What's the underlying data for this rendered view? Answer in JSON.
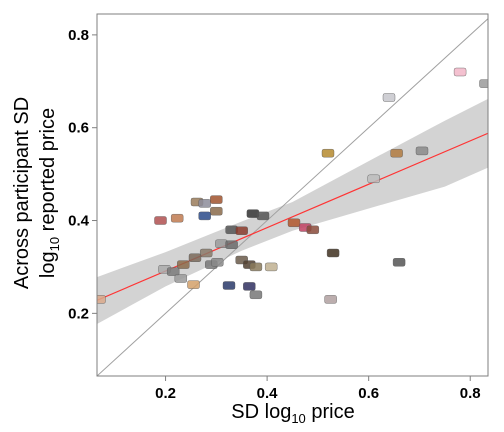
{
  "chart_data": {
    "type": "scatter",
    "xlabel": "SD log",
    "xlabel_sub": "10",
    "xlabel_tail": " price",
    "ylabel_line1": "Across participant SD",
    "ylabel_line2_pre": "log",
    "ylabel_line2_sub": "10",
    "ylabel_line2_post": " reported price",
    "xlim": [
      0.065,
      0.835
    ],
    "ylim": [
      0.065,
      0.845
    ],
    "x_ticks": [
      {
        "value": 0.2,
        "label": "0.2"
      },
      {
        "value": 0.4,
        "label": "0.4"
      },
      {
        "value": 0.6,
        "label": "0.6"
      },
      {
        "value": 0.8,
        "label": "0.8"
      }
    ],
    "y_ticks": [
      {
        "value": 0.2,
        "label": "0.2"
      },
      {
        "value": 0.4,
        "label": "0.4"
      },
      {
        "value": 0.6,
        "label": "0.6"
      },
      {
        "value": 0.8,
        "label": "0.8"
      }
    ],
    "grid": false,
    "identity_line": true,
    "fit_line": {
      "x": [
        0.065,
        0.835
      ],
      "y": [
        0.228,
        0.588
      ],
      "color": "#ff3333"
    },
    "confidence_band": {
      "x": [
        0.065,
        0.2,
        0.35,
        0.45,
        0.6,
        0.75,
        0.835
      ],
      "upper": [
        0.278,
        0.332,
        0.398,
        0.44,
        0.528,
        0.615,
        0.662
      ],
      "lower": [
        0.177,
        0.258,
        0.335,
        0.378,
        0.426,
        0.473,
        0.514
      ],
      "color": "#d3d3d3"
    },
    "points": [
      {
        "x": 0.07,
        "y": 0.23,
        "color": "#d9a88a"
      },
      {
        "x": 0.78,
        "y": 0.72,
        "color": "#f2b6c8"
      },
      {
        "x": 0.64,
        "y": 0.665,
        "color": "#c7c7cc"
      },
      {
        "x": 0.83,
        "y": 0.695,
        "color": "#9a9a9a"
      },
      {
        "x": 0.52,
        "y": 0.545,
        "color": "#b58a2e"
      },
      {
        "x": 0.655,
        "y": 0.545,
        "color": "#b07a40"
      },
      {
        "x": 0.705,
        "y": 0.55,
        "color": "#8a8a8a"
      },
      {
        "x": 0.61,
        "y": 0.49,
        "color": "#bcbcbc"
      },
      {
        "x": 0.262,
        "y": 0.44,
        "color": "#9a7b5b"
      },
      {
        "x": 0.277,
        "y": 0.437,
        "color": "#8c8c9a"
      },
      {
        "x": 0.3,
        "y": 0.445,
        "color": "#a0522d"
      },
      {
        "x": 0.19,
        "y": 0.4,
        "color": "#b05050"
      },
      {
        "x": 0.223,
        "y": 0.405,
        "color": "#c07a50"
      },
      {
        "x": 0.3,
        "y": 0.42,
        "color": "#8a6a4a"
      },
      {
        "x": 0.277,
        "y": 0.41,
        "color": "#2a4a8a"
      },
      {
        "x": 0.372,
        "y": 0.415,
        "color": "#303030"
      },
      {
        "x": 0.392,
        "y": 0.41,
        "color": "#555555"
      },
      {
        "x": 0.33,
        "y": 0.38,
        "color": "#555555"
      },
      {
        "x": 0.35,
        "y": 0.378,
        "color": "#8a3a2a"
      },
      {
        "x": 0.453,
        "y": 0.395,
        "color": "#b0552a"
      },
      {
        "x": 0.475,
        "y": 0.385,
        "color": "#c04060"
      },
      {
        "x": 0.49,
        "y": 0.38,
        "color": "#8a4a3a"
      },
      {
        "x": 0.31,
        "y": 0.35,
        "color": "#9a9a9a"
      },
      {
        "x": 0.33,
        "y": 0.348,
        "color": "#6a6a6a"
      },
      {
        "x": 0.28,
        "y": 0.33,
        "color": "#8a7a6a"
      },
      {
        "x": 0.258,
        "y": 0.32,
        "color": "#7a6a5a"
      },
      {
        "x": 0.235,
        "y": 0.305,
        "color": "#8a6a4a"
      },
      {
        "x": 0.198,
        "y": 0.295,
        "color": "#aaaaaa"
      },
      {
        "x": 0.215,
        "y": 0.29,
        "color": "#7a7a7a"
      },
      {
        "x": 0.23,
        "y": 0.275,
        "color": "#9a9a9a"
      },
      {
        "x": 0.255,
        "y": 0.262,
        "color": "#d2a06a"
      },
      {
        "x": 0.29,
        "y": 0.305,
        "color": "#777777"
      },
      {
        "x": 0.302,
        "y": 0.31,
        "color": "#888888"
      },
      {
        "x": 0.35,
        "y": 0.315,
        "color": "#6a5a4a"
      },
      {
        "x": 0.365,
        "y": 0.305,
        "color": "#504030"
      },
      {
        "x": 0.378,
        "y": 0.3,
        "color": "#8a7a5a"
      },
      {
        "x": 0.408,
        "y": 0.3,
        "color": "#c0b090"
      },
      {
        "x": 0.325,
        "y": 0.26,
        "color": "#2a3a6a"
      },
      {
        "x": 0.365,
        "y": 0.258,
        "color": "#303060"
      },
      {
        "x": 0.378,
        "y": 0.24,
        "color": "#777777"
      },
      {
        "x": 0.53,
        "y": 0.33,
        "color": "#403020"
      },
      {
        "x": 0.525,
        "y": 0.23,
        "color": "#b0a0a0"
      },
      {
        "x": 0.66,
        "y": 0.31,
        "color": "#555555"
      }
    ]
  }
}
